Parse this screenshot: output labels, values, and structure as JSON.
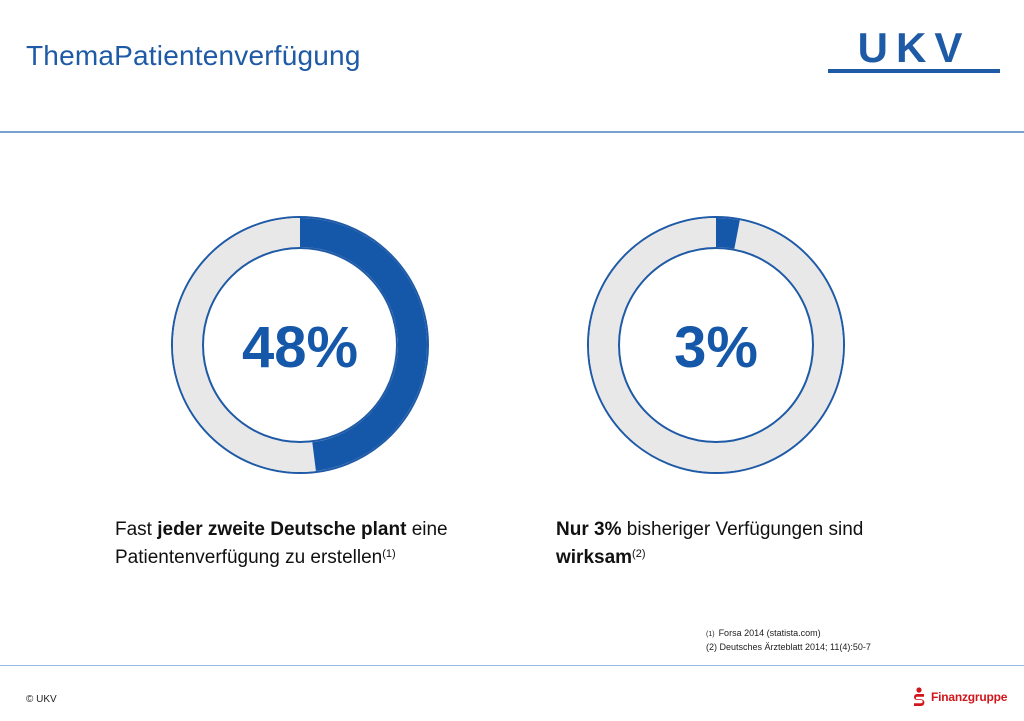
{
  "header": {
    "title": "ThemaPatientenverfügung",
    "logo_text": "UKV"
  },
  "colors": {
    "accent": "#1557a8",
    "track": "#e8e8e8",
    "outline": "#1f5aa6",
    "sparkasse_red": "#d0161b"
  },
  "chart_data": [
    {
      "type": "pie",
      "label": "48%",
      "values": [
        48,
        52
      ],
      "caption": {
        "p1": "Fast ",
        "b1": "jeder zweite Deutsche plant",
        "p2": " eine Patientenverfügung zu erstellen",
        "ref": "(1)"
      }
    },
    {
      "type": "pie",
      "label": "3%",
      "values": [
        3,
        97
      ],
      "caption": {
        "b1": "Nur 3%",
        "p1": " bisheriger Verfügungen sind ",
        "b2": "wirksam",
        "ref": "(2)"
      }
    }
  ],
  "footnotes": {
    "fn1_marker": "(1)",
    "fn1_text": "Forsa 2014 (statista.com)",
    "fn2": "(2) Deutsches Ärzteblatt 2014; 11(4):50-7"
  },
  "footer": {
    "copyright": "© UKV",
    "sparkasse_label": "Finanzgruppe"
  }
}
